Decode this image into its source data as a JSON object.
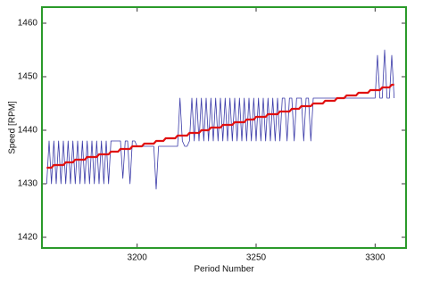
{
  "chart_data": {
    "type": "line",
    "xlabel": "Period Number",
    "ylabel": "Speed [RPM]",
    "x": [
      3162,
      3163,
      3164,
      3165,
      3166,
      3167,
      3168,
      3169,
      3170,
      3171,
      3172,
      3173,
      3174,
      3175,
      3176,
      3177,
      3178,
      3179,
      3180,
      3181,
      3182,
      3183,
      3184,
      3185,
      3186,
      3187,
      3188,
      3189,
      3190,
      3191,
      3192,
      3193,
      3194,
      3195,
      3196,
      3197,
      3198,
      3199,
      3200,
      3201,
      3202,
      3203,
      3204,
      3205,
      3206,
      3207,
      3208,
      3209,
      3210,
      3211,
      3212,
      3213,
      3214,
      3215,
      3216,
      3217,
      3218,
      3219,
      3220,
      3221,
      3222,
      3223,
      3224,
      3225,
      3226,
      3227,
      3228,
      3229,
      3230,
      3231,
      3232,
      3233,
      3234,
      3235,
      3236,
      3237,
      3238,
      3239,
      3240,
      3241,
      3242,
      3243,
      3244,
      3245,
      3246,
      3247,
      3248,
      3249,
      3250,
      3251,
      3252,
      3253,
      3254,
      3255,
      3256,
      3257,
      3258,
      3259,
      3260,
      3261,
      3262,
      3263,
      3264,
      3265,
      3266,
      3267,
      3268,
      3269,
      3270,
      3271,
      3272,
      3273,
      3274,
      3275,
      3276,
      3277,
      3278,
      3279,
      3280,
      3281,
      3282,
      3283,
      3284,
      3285,
      3286,
      3287,
      3288,
      3289,
      3290,
      3291,
      3292,
      3293,
      3294,
      3295,
      3296,
      3297,
      3298,
      3299,
      3300,
      3301,
      3302,
      3303,
      3304,
      3305,
      3306,
      3307,
      3308
    ],
    "series": [
      {
        "color": "#3a3aa8",
        "width": 0.8,
        "values": [
          1430,
          1438,
          1430,
          1438,
          1430,
          1438,
          1430,
          1438,
          1430,
          1438,
          1430,
          1438,
          1430,
          1438,
          1430,
          1438,
          1430,
          1438,
          1430,
          1438,
          1430,
          1438,
          1430,
          1438,
          1430,
          1438,
          1430,
          1438,
          1438,
          1438,
          1438,
          1438,
          1431,
          1438,
          1438,
          1430,
          1438,
          1438,
          1437,
          1437,
          1437,
          1437,
          1437,
          1437,
          1437,
          1437,
          1429,
          1437,
          1437,
          1437,
          1437,
          1437,
          1437,
          1437,
          1437,
          1437,
          1446,
          1438,
          1437,
          1437,
          1438,
          1446,
          1438,
          1446,
          1438,
          1446,
          1438,
          1446,
          1438,
          1446,
          1438,
          1446,
          1438,
          1446,
          1438,
          1446,
          1438,
          1446,
          1438,
          1446,
          1438,
          1446,
          1438,
          1446,
          1438,
          1446,
          1438,
          1446,
          1438,
          1446,
          1438,
          1446,
          1438,
          1446,
          1438,
          1446,
          1438,
          1446,
          1438,
          1446,
          1446,
          1438,
          1446,
          1446,
          1438,
          1446,
          1446,
          1446,
          1438,
          1446,
          1446,
          1438,
          1446,
          1446,
          1446,
          1446,
          1446,
          1446,
          1446,
          1446,
          1446,
          1446,
          1446,
          1446,
          1446,
          1446,
          1446,
          1446,
          1446,
          1446,
          1446,
          1446,
          1446,
          1446,
          1446,
          1446,
          1446,
          1446,
          1446,
          1454,
          1446,
          1446,
          1455,
          1446,
          1446,
          1454,
          1446
        ]
      },
      {
        "color": "#e01010",
        "width": 2.2,
        "values": [
          1433,
          1433,
          1433,
          1433.5,
          1433.5,
          1433.5,
          1433.5,
          1433.5,
          1434,
          1434,
          1434,
          1434,
          1434.5,
          1434.5,
          1434.5,
          1434.5,
          1434.5,
          1435,
          1435,
          1435,
          1435,
          1435,
          1435.5,
          1435.5,
          1435.5,
          1435.5,
          1435.5,
          1436,
          1436,
          1436,
          1436,
          1436.5,
          1436.5,
          1436.5,
          1436.5,
          1436.5,
          1437,
          1437,
          1437,
          1437,
          1437,
          1437.5,
          1437.5,
          1437.5,
          1437.5,
          1437.5,
          1438,
          1438,
          1438,
          1438,
          1438.5,
          1438.5,
          1438.5,
          1438.5,
          1438.5,
          1439,
          1439,
          1439,
          1439,
          1439,
          1439.5,
          1439.5,
          1439.5,
          1439.5,
          1439.5,
          1440,
          1440,
          1440,
          1440,
          1440.5,
          1440.5,
          1440.5,
          1440.5,
          1440.5,
          1441,
          1441,
          1441,
          1441,
          1441,
          1441.5,
          1441.5,
          1441.5,
          1441.5,
          1441.5,
          1442,
          1442,
          1442,
          1442,
          1442.5,
          1442.5,
          1442.5,
          1442.5,
          1442.5,
          1443,
          1443,
          1443,
          1443,
          1443,
          1443.5,
          1443.5,
          1443.5,
          1443.5,
          1443.5,
          1444,
          1444,
          1444,
          1444,
          1444.5,
          1444.5,
          1444.5,
          1444.5,
          1444.5,
          1445,
          1445,
          1445,
          1445,
          1445,
          1445.5,
          1445.5,
          1445.5,
          1445.5,
          1445.5,
          1446,
          1446,
          1446,
          1446,
          1446.5,
          1446.5,
          1446.5,
          1446.5,
          1446.5,
          1447,
          1447,
          1447,
          1447,
          1447,
          1447.5,
          1447.5,
          1447.5,
          1447.5,
          1447.5,
          1448,
          1448,
          1448,
          1448,
          1448.5,
          1448.5
        ]
      }
    ],
    "xlim": [
      3160,
      3313
    ],
    "xticks": [
      3200,
      3250,
      3300
    ],
    "ylim": [
      1418,
      1463
    ],
    "yticks": [
      1420,
      1430,
      1440,
      1450,
      1460
    ],
    "frame_color": "#2a9a2a"
  }
}
